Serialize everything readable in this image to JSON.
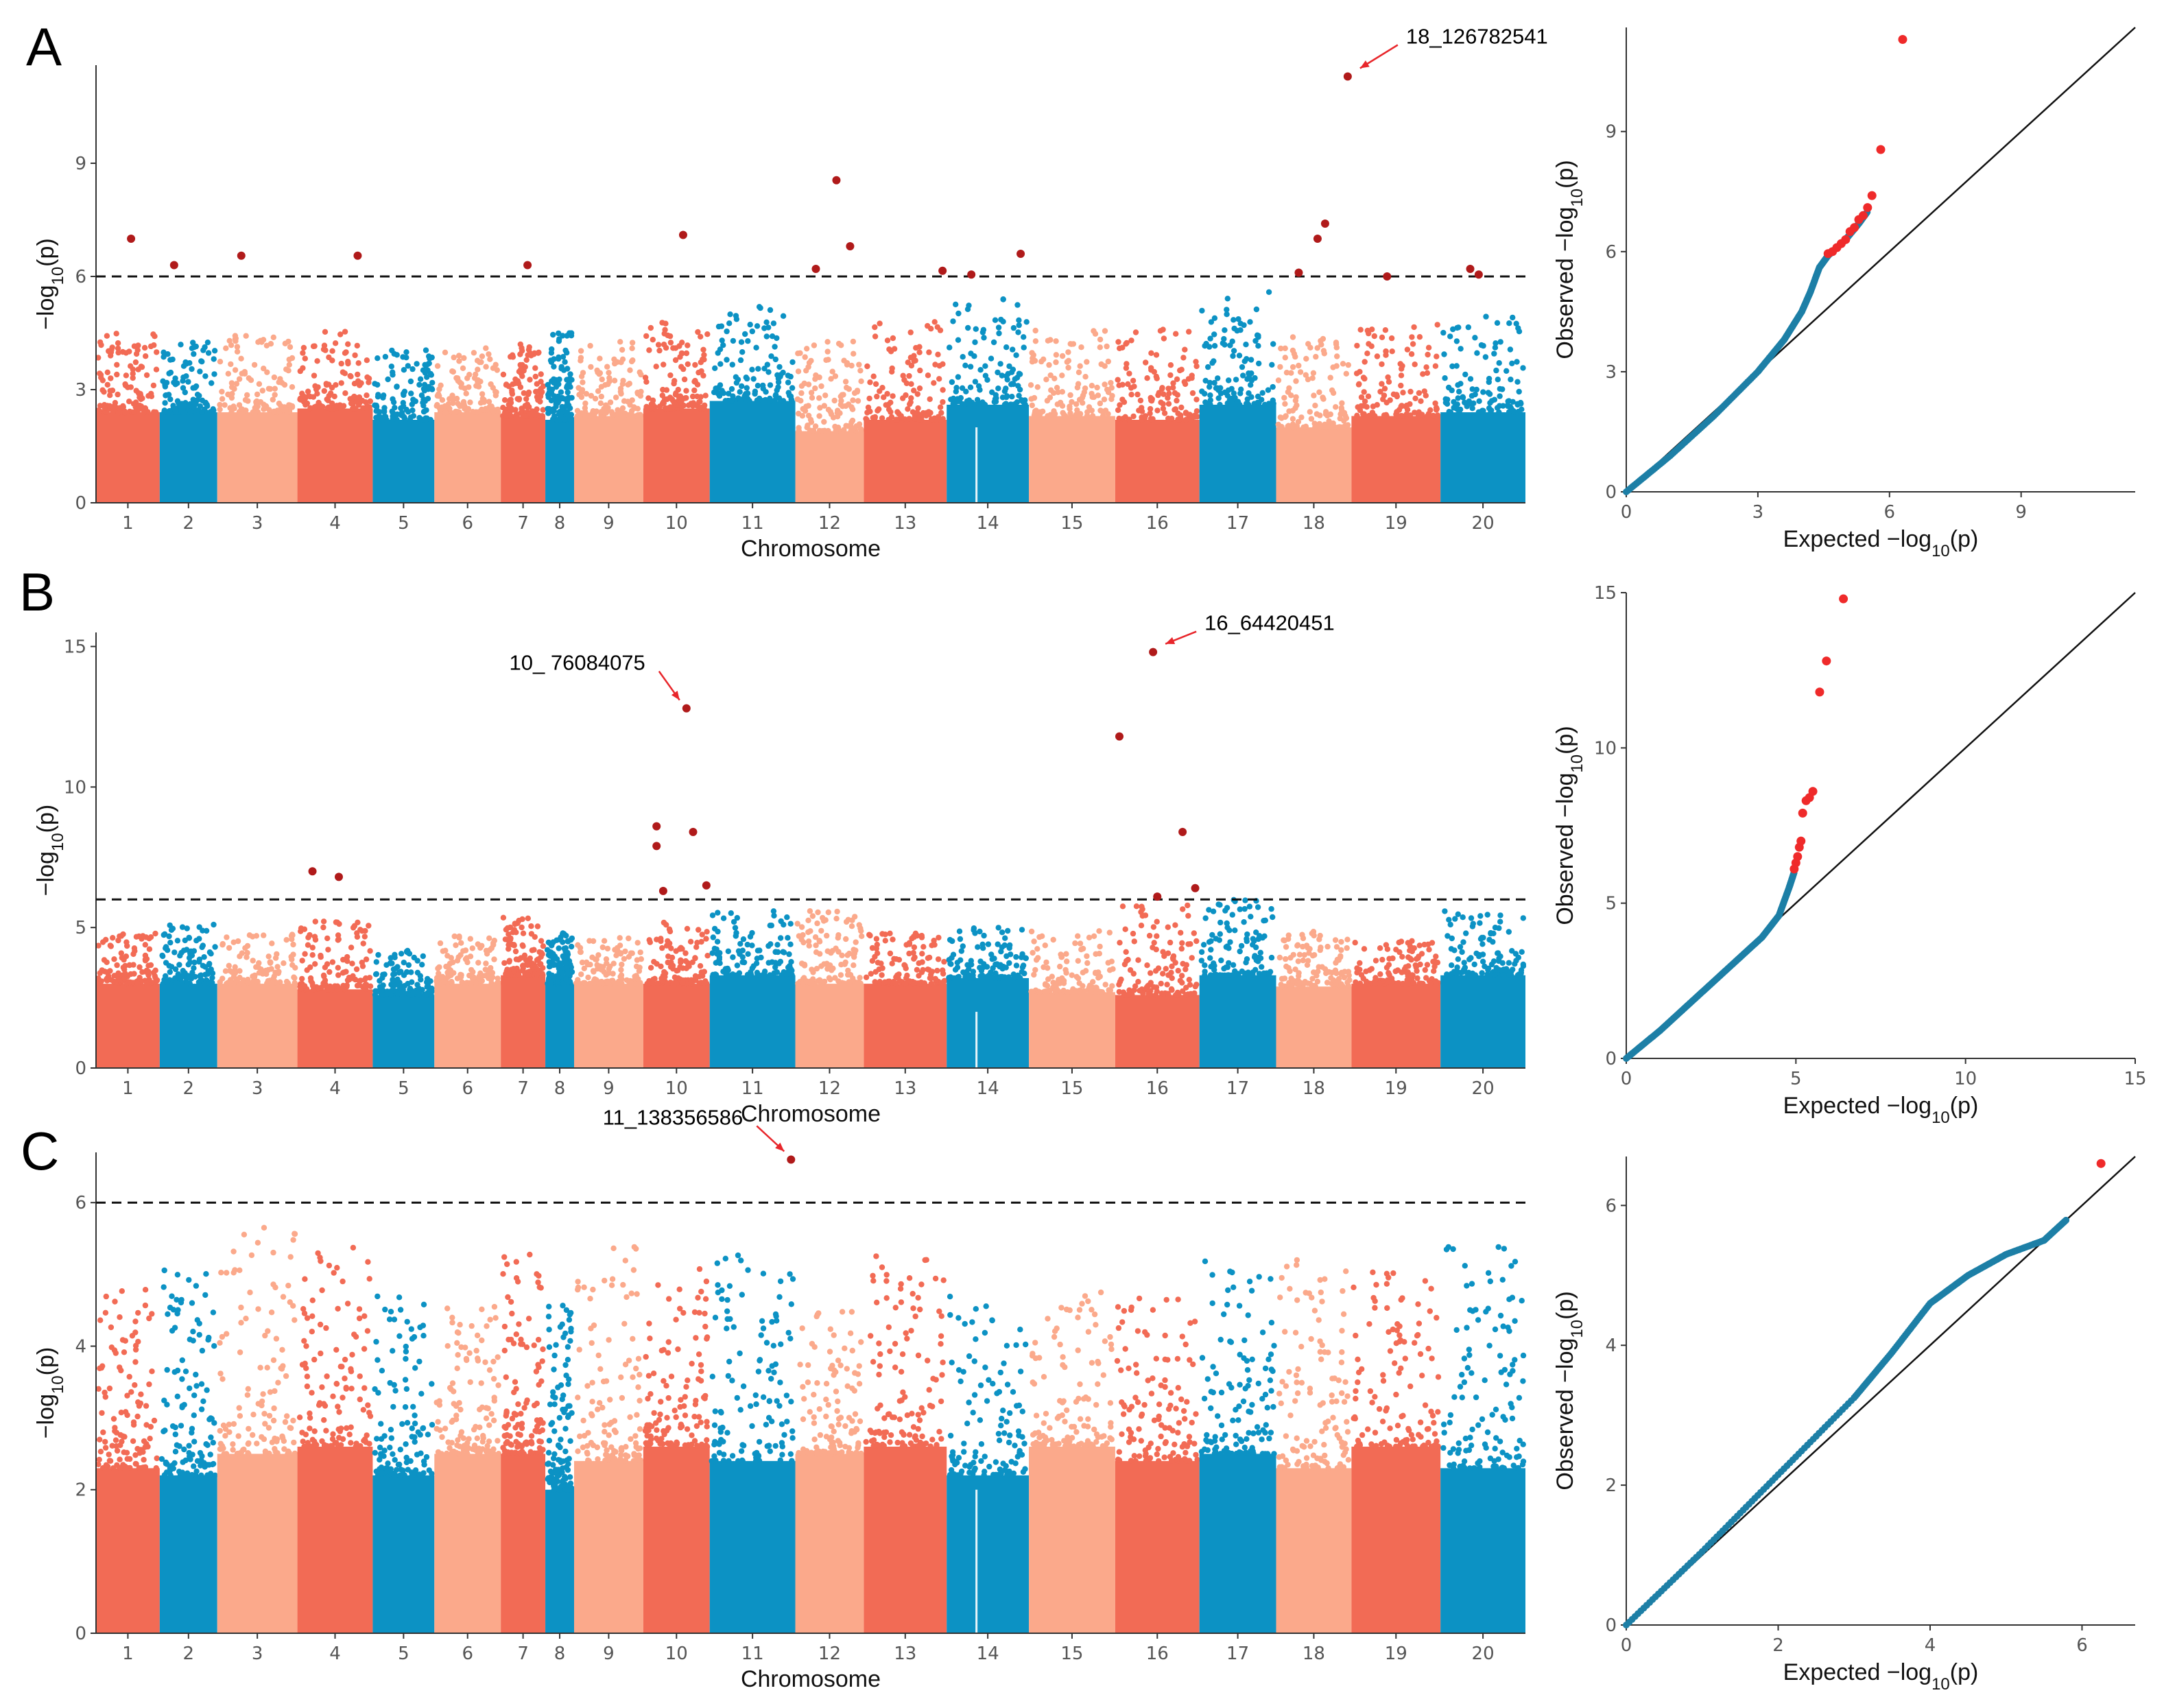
{
  "figure": {
    "panels": [
      "A",
      "B",
      "C"
    ],
    "colors": {
      "chrom_palette": [
        "#f26b55",
        "#0c92c4",
        "#fba98b",
        "#f26b55",
        "#0c92c4"
      ],
      "significant": "#b01a1a",
      "qq_points": "#1d7fa6",
      "qq_significant": "#ef2a2a",
      "threshold": "#111111",
      "arrow": "#e8262b"
    }
  },
  "chart_data": [
    {
      "type": "scatter",
      "subtype": "manhattan",
      "panel": "A",
      "xlabel": "Chromosome",
      "ylabel": "−log10(p)",
      "ylim": [
        0,
        11.6
      ],
      "yticks": [
        "0",
        "3",
        "6",
        "9"
      ],
      "threshold": 6,
      "categories": [
        "1",
        "2",
        "3",
        "4",
        "5",
        "6",
        "7",
        "8",
        "9",
        "10",
        "11",
        "12",
        "13",
        "14",
        "15",
        "16",
        "17",
        "18",
        "19",
        "20"
      ],
      "chrom_colors": [
        "#f26b55",
        "#0c92c4",
        "#fba98b",
        "#f26b55",
        "#0c92c4",
        "#fba98b",
        "#f26b55",
        "#0c92c4",
        "#fba98b",
        "#f26b55",
        "#0c92c4",
        "#fba98b",
        "#f26b55",
        "#0c92c4",
        "#fba98b",
        "#f26b55",
        "#0c92c4",
        "#fba98b",
        "#f26b55",
        "#0c92c4"
      ],
      "chrom_fill_top": [
        2.4,
        2.4,
        2.4,
        2.5,
        2.2,
        2.4,
        2.3,
        2.2,
        2.3,
        2.5,
        2.7,
        1.9,
        2.2,
        2.6,
        2.3,
        2.2,
        2.6,
        2.0,
        2.3,
        2.4
      ],
      "chrom_peak": [
        4.5,
        4.3,
        4.5,
        4.6,
        4.1,
        4.1,
        4.2,
        4.6,
        4.4,
        4.8,
        5.2,
        4.3,
        4.8,
        5.4,
        4.6,
        4.6,
        5.6,
        4.4,
        4.8,
        5.0
      ],
      "significant": [
        {
          "chr": 1,
          "pos": 0.55,
          "y": 7.0
        },
        {
          "chr": 2,
          "pos": 0.25,
          "y": 6.3
        },
        {
          "chr": 3,
          "pos": 0.3,
          "y": 6.55
        },
        {
          "chr": 4,
          "pos": 0.8,
          "y": 6.55
        },
        {
          "chr": 7,
          "pos": 0.6,
          "y": 6.3
        },
        {
          "chr": 10,
          "pos": 0.6,
          "y": 7.1
        },
        {
          "chr": 12,
          "pos": 0.3,
          "y": 6.2
        },
        {
          "chr": 12,
          "pos": 0.6,
          "y": 8.55
        },
        {
          "chr": 12,
          "pos": 0.8,
          "y": 6.8
        },
        {
          "chr": 13,
          "pos": 0.95,
          "y": 6.15
        },
        {
          "chr": 14,
          "pos": 0.3,
          "y": 6.05
        },
        {
          "chr": 14,
          "pos": 0.9,
          "y": 6.6
        },
        {
          "chr": 18,
          "pos": 0.3,
          "y": 6.1
        },
        {
          "chr": 18,
          "pos": 0.55,
          "y": 7.0
        },
        {
          "chr": 18,
          "pos": 0.65,
          "y": 7.4
        },
        {
          "chr": 18,
          "pos": 0.95,
          "y": 11.3
        },
        {
          "chr": 19,
          "pos": 0.4,
          "y": 6.0
        },
        {
          "chr": 20,
          "pos": 0.35,
          "y": 6.2
        },
        {
          "chr": 20,
          "pos": 0.45,
          "y": 6.05
        }
      ],
      "annotations": [
        {
          "label": "18_126782541",
          "chr": 18,
          "pos": 0.95,
          "y": 11.3
        }
      ]
    },
    {
      "type": "scatter",
      "subtype": "qq",
      "panel": "A",
      "xlabel": "Expected −log10(p)",
      "ylabel": "Observed −log10(p)",
      "xlim": [
        0,
        11.6
      ],
      "ylim": [
        0,
        11.6
      ],
      "xticks": [
        "0",
        "3",
        "6",
        "9"
      ],
      "yticks": [
        "0",
        "3",
        "6",
        "9"
      ],
      "curve": [
        [
          0,
          0
        ],
        [
          1,
          0.9
        ],
        [
          2,
          1.9
        ],
        [
          3,
          3.0
        ],
        [
          3.6,
          3.8
        ],
        [
          4.0,
          4.5
        ],
        [
          4.2,
          5.0
        ],
        [
          4.4,
          5.6
        ],
        [
          4.6,
          5.9
        ],
        [
          5.0,
          6.3
        ],
        [
          5.3,
          6.7
        ],
        [
          5.5,
          7.0
        ]
      ],
      "points_sig": [
        [
          4.6,
          5.95
        ],
        [
          4.7,
          6.0
        ],
        [
          4.8,
          6.1
        ],
        [
          4.9,
          6.2
        ],
        [
          5.0,
          6.3
        ],
        [
          5.1,
          6.5
        ],
        [
          5.2,
          6.6
        ],
        [
          5.3,
          6.8
        ],
        [
          5.4,
          6.9
        ],
        [
          5.5,
          7.1
        ],
        [
          5.6,
          7.4
        ],
        [
          5.8,
          8.55
        ],
        [
          6.3,
          11.3
        ]
      ]
    },
    {
      "type": "scatter",
      "subtype": "manhattan",
      "panel": "B",
      "xlabel": "Chromosome",
      "ylabel": "−log10(p)",
      "ylim": [
        0,
        15.5
      ],
      "yticks": [
        "0",
        "5",
        "10",
        "15"
      ],
      "threshold": 6,
      "categories": [
        "1",
        "2",
        "3",
        "4",
        "5",
        "6",
        "7",
        "8",
        "9",
        "10",
        "11",
        "12",
        "13",
        "14",
        "15",
        "16",
        "17",
        "18",
        "19",
        "20"
      ],
      "chrom_colors": [
        "#f26b55",
        "#0c92c4",
        "#fba98b",
        "#f26b55",
        "#0c92c4",
        "#fba98b",
        "#f26b55",
        "#0c92c4",
        "#fba98b",
        "#f26b55",
        "#0c92c4",
        "#fba98b",
        "#f26b55",
        "#0c92c4",
        "#fba98b",
        "#f26b55",
        "#0c92c4",
        "#fba98b",
        "#f26b55",
        "#0c92c4"
      ],
      "chrom_fill_top": [
        3.0,
        3.0,
        3.0,
        2.8,
        2.6,
        3.0,
        3.3,
        3.0,
        3.0,
        3.0,
        3.3,
        3.0,
        3.0,
        3.2,
        2.7,
        2.6,
        3.3,
        2.9,
        3.0,
        3.3
      ],
      "chrom_peak": [
        4.8,
        5.2,
        4.8,
        5.3,
        4.2,
        4.7,
        5.4,
        4.8,
        4.7,
        5.2,
        5.6,
        5.6,
        4.8,
        5.0,
        4.9,
        5.8,
        6.0,
        4.9,
        4.6,
        5.6
      ],
      "significant": [
        {
          "chr": 4,
          "pos": 0.2,
          "y": 7.0
        },
        {
          "chr": 4,
          "pos": 0.55,
          "y": 6.8
        },
        {
          "chr": 10,
          "pos": 0.2,
          "y": 8.6
        },
        {
          "chr": 10,
          "pos": 0.2,
          "y": 7.9
        },
        {
          "chr": 10,
          "pos": 0.3,
          "y": 6.3
        },
        {
          "chr": 10,
          "pos": 0.65,
          "y": 12.8
        },
        {
          "chr": 10,
          "pos": 0.75,
          "y": 8.4
        },
        {
          "chr": 10,
          "pos": 0.95,
          "y": 6.5
        },
        {
          "chr": 16,
          "pos": 0.05,
          "y": 11.8
        },
        {
          "chr": 16,
          "pos": 0.45,
          "y": 14.8
        },
        {
          "chr": 16,
          "pos": 0.5,
          "y": 6.1
        },
        {
          "chr": 16,
          "pos": 0.8,
          "y": 8.4
        },
        {
          "chr": 16,
          "pos": 0.95,
          "y": 6.4
        }
      ],
      "annotations": [
        {
          "label": "10_ 76084075",
          "chr": 10,
          "pos": 0.65,
          "y": 12.8
        },
        {
          "label": "16_64420451",
          "chr": 16,
          "pos": 0.45,
          "y": 14.8
        }
      ]
    },
    {
      "type": "scatter",
      "subtype": "qq",
      "panel": "B",
      "xlabel": "Expected −log10(p)",
      "ylabel": "Observed −log10(p)",
      "xlim": [
        0,
        15
      ],
      "ylim": [
        0,
        15
      ],
      "xticks": [
        "0",
        "5",
        "10",
        "15"
      ],
      "yticks": [
        "0",
        "5",
        "10",
        "15"
      ],
      "curve": [
        [
          0,
          0
        ],
        [
          1,
          0.9
        ],
        [
          2,
          1.9
        ],
        [
          3,
          2.9
        ],
        [
          4,
          3.9
        ],
        [
          4.5,
          4.6
        ],
        [
          4.8,
          5.5
        ],
        [
          4.95,
          6.0
        ]
      ],
      "points_sig": [
        [
          4.95,
          6.1
        ],
        [
          5.0,
          6.3
        ],
        [
          5.05,
          6.5
        ],
        [
          5.1,
          6.8
        ],
        [
          5.15,
          7.0
        ],
        [
          5.2,
          7.9
        ],
        [
          5.3,
          8.3
        ],
        [
          5.4,
          8.4
        ],
        [
          5.5,
          8.6
        ],
        [
          5.7,
          11.8
        ],
        [
          5.9,
          12.8
        ],
        [
          6.4,
          14.8
        ]
      ]
    },
    {
      "type": "scatter",
      "subtype": "manhattan",
      "panel": "C",
      "xlabel": "Chromosome",
      "ylabel": "−log10(p)",
      "ylim": [
        0,
        6.7
      ],
      "yticks": [
        "0",
        "2",
        "4",
        "6"
      ],
      "threshold": 6,
      "categories": [
        "1",
        "2",
        "3",
        "4",
        "5",
        "6",
        "7",
        "8",
        "9",
        "10",
        "11",
        "12",
        "13",
        "14",
        "15",
        "16",
        "17",
        "18",
        "19",
        "20"
      ],
      "chrom_colors": [
        "#f26b55",
        "#0c92c4",
        "#fba98b",
        "#f26b55",
        "#0c92c4",
        "#fba98b",
        "#f26b55",
        "#0c92c4",
        "#fba98b",
        "#f26b55",
        "#0c92c4",
        "#fba98b",
        "#f26b55",
        "#0c92c4",
        "#fba98b",
        "#f26b55",
        "#0c92c4",
        "#fba98b",
        "#f26b55",
        "#0c92c4"
      ],
      "chrom_fill_top": [
        2.3,
        2.2,
        2.5,
        2.6,
        2.2,
        2.5,
        2.5,
        2.0,
        2.4,
        2.6,
        2.4,
        2.5,
        2.6,
        2.2,
        2.6,
        2.4,
        2.5,
        2.3,
        2.6,
        2.3
      ],
      "chrom_peak": [
        4.8,
        5.1,
        5.8,
        5.4,
        4.7,
        4.6,
        5.3,
        4.6,
        5.4,
        5.1,
        5.3,
        4.5,
        5.3,
        4.8,
        4.8,
        4.7,
        5.2,
        5.3,
        5.1,
        5.4
      ],
      "significant": [
        {
          "chr": 11,
          "pos": 0.95,
          "y": 6.6
        }
      ],
      "annotations": [
        {
          "label": "11_138356586",
          "chr": 11,
          "pos": 0.95,
          "y": 6.6
        }
      ]
    },
    {
      "type": "scatter",
      "subtype": "qq",
      "panel": "C",
      "xlabel": "Expected −log10(p)",
      "ylabel": "Observed −log10(p)",
      "xlim": [
        0,
        6.7
      ],
      "ylim": [
        0,
        6.7
      ],
      "xticks": [
        "0",
        "2",
        "4",
        "6"
      ],
      "yticks": [
        "0",
        "2",
        "4",
        "6"
      ],
      "curve": [
        [
          0,
          0
        ],
        [
          1,
          1.05
        ],
        [
          2,
          2.15
        ],
        [
          3,
          3.25
        ],
        [
          3.5,
          3.9
        ],
        [
          4.0,
          4.6
        ],
        [
          4.5,
          5.0
        ],
        [
          5.0,
          5.3
        ],
        [
          5.5,
          5.5
        ],
        [
          5.8,
          5.8
        ]
      ],
      "points_sig": [
        [
          6.25,
          6.6
        ]
      ]
    }
  ]
}
